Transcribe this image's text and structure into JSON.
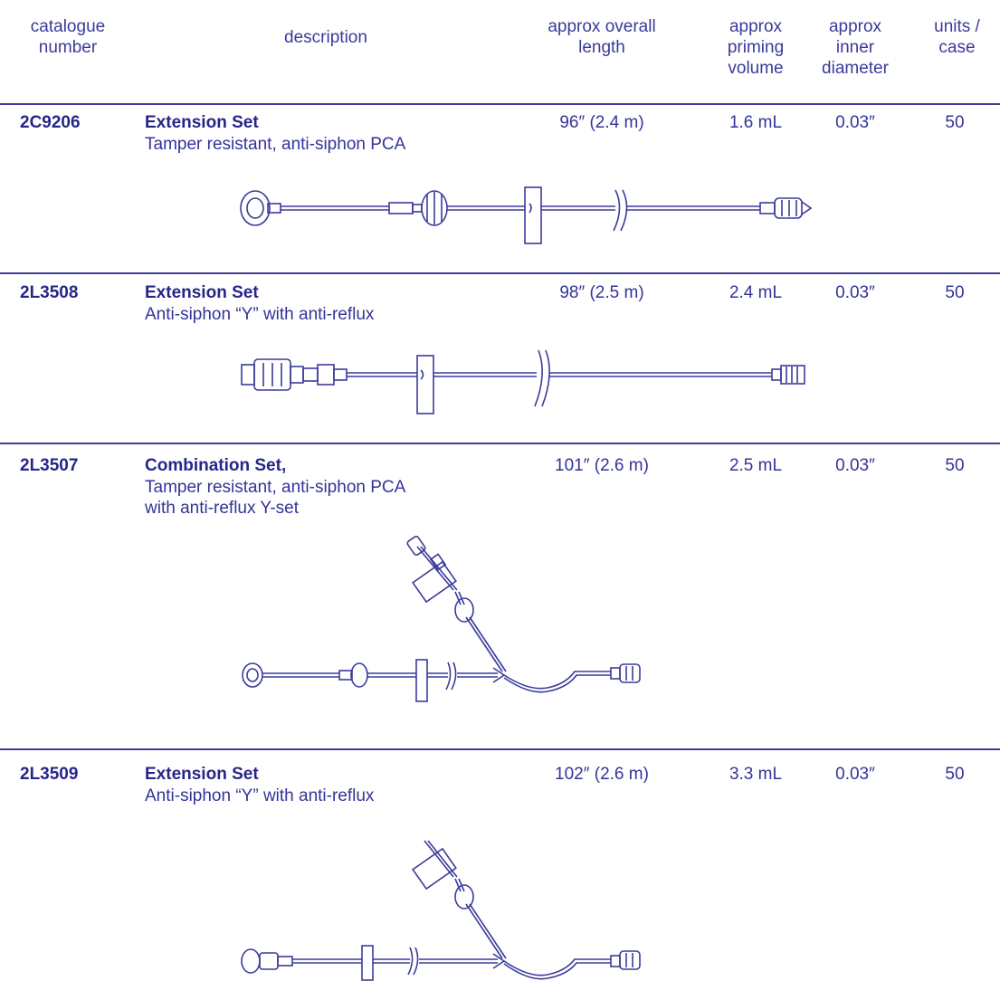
{
  "header": {
    "catalogue": [
      "catalogue",
      "number"
    ],
    "description": "description",
    "length": [
      "approx overall",
      "length"
    ],
    "priming": [
      "approx",
      "priming",
      "volume"
    ],
    "diameter": [
      "approx",
      "inner",
      "diameter"
    ],
    "units": [
      "units /",
      "case"
    ]
  },
  "rows": [
    {
      "catalogue_number": "2C9206",
      "name": "Extension Set",
      "description": [
        "Tamper resistant, anti-siphon PCA"
      ],
      "length": "96″ (2.4 m)",
      "priming_volume": "1.6 mL",
      "inner_diameter": "0.03″",
      "units_per_case": "50",
      "drawing": "extension-set-pca-drawing"
    },
    {
      "catalogue_number": "2L3508",
      "name": "Extension Set",
      "description": [
        "Anti-siphon “Y” with anti-reflux"
      ],
      "length": "98″ (2.5 m)",
      "priming_volume": "2.4 mL",
      "inner_diameter": "0.03″",
      "units_per_case": "50",
      "drawing": "extension-set-y-drawing"
    },
    {
      "catalogue_number": "2L3507",
      "name": "Combination Set,",
      "description": [
        "Tamper resistant, anti-siphon PCA",
        "with anti-reflux Y-set"
      ],
      "length": "101″ (2.6 m)",
      "priming_volume": "2.5 mL",
      "inner_diameter": "0.03″",
      "units_per_case": "50",
      "drawing": "combination-set-drawing"
    },
    {
      "catalogue_number": "2L3509",
      "name": "Extension Set",
      "description": [
        "Anti-siphon “Y” with anti-reflux"
      ],
      "length": "102″ (2.6 m)",
      "priming_volume": "3.3 mL",
      "inner_diameter": "0.03″",
      "units_per_case": "50",
      "drawing": "extension-set-y-branch-drawing"
    }
  ],
  "colors": {
    "text": "#2b2b8f",
    "rule": "#3d3d96",
    "drawing": "#3b3b9b"
  }
}
